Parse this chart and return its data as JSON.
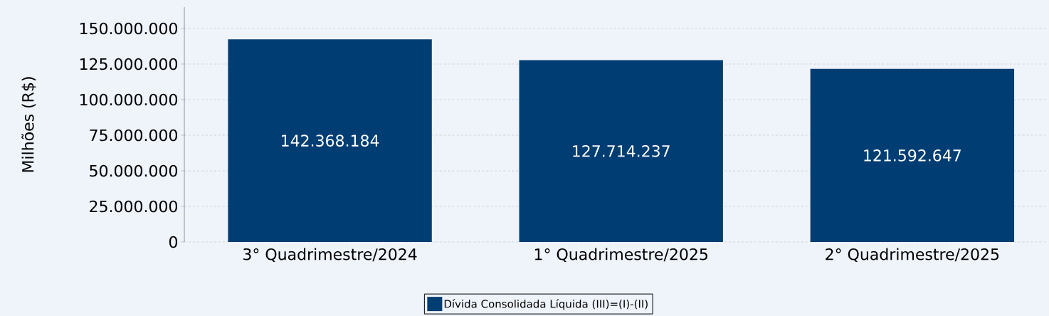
{
  "chart_data": {
    "type": "bar",
    "ylabel": "Milhões (R$)",
    "categories": [
      "3° Quadrimestre/2024",
      "1° Quadrimestre/2025",
      "2° Quadrimestre/2025"
    ],
    "series": [
      {
        "name": "Dívida Consolidada Líquida (III)=(I)-(II)",
        "color": "#003d73",
        "values": [
          142368184,
          127714237,
          121592647
        ],
        "value_labels": [
          "142.368.184",
          "127.714.237",
          "121.592.647"
        ]
      }
    ],
    "ylim": [
      0,
      165000000
    ],
    "yticks": [
      {
        "value": 0,
        "label": "0"
      },
      {
        "value": 25000000,
        "label": "25.000.000"
      },
      {
        "value": 50000000,
        "label": "50.000.000"
      },
      {
        "value": 75000000,
        "label": "75.000.000"
      },
      {
        "value": 100000000,
        "label": "100.000.000"
      },
      {
        "value": 125000000,
        "label": "125.000.000"
      },
      {
        "value": 150000000,
        "label": "150.000.000"
      }
    ],
    "grid": "y",
    "legend": "bottom"
  }
}
